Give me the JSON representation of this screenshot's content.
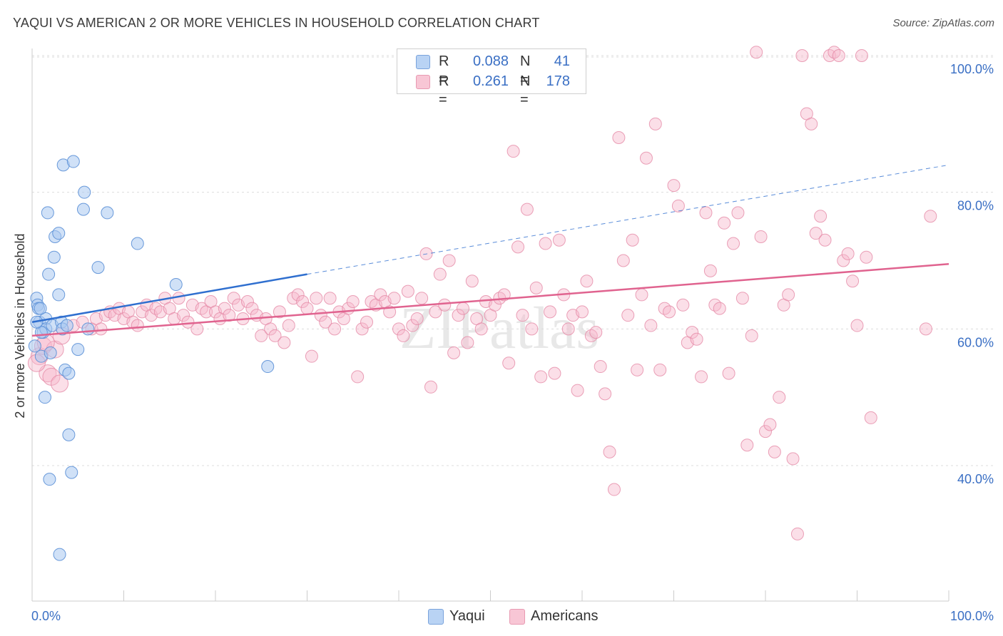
{
  "title": "YAQUI VS AMERICAN 2 OR MORE VEHICLES IN HOUSEHOLD CORRELATION CHART",
  "source": "Source: ZipAtlas.com",
  "watermark": "ZIPatlas",
  "colors": {
    "yaqui_fill": "#a9c8f0",
    "yaqui_stroke": "#5a8fd6",
    "yaqui_line": "#2f6fcf",
    "americans_fill": "#f6b8cb",
    "americans_stroke": "#e58aa6",
    "americans_line": "#e0638f",
    "axis_text": "#3a6fc4"
  },
  "legend": {
    "rows": [
      {
        "swatch": "yaqui",
        "r_label": "R =",
        "r_value": "0.088",
        "n_label": "N =",
        "n_value": "41"
      },
      {
        "swatch": "americans",
        "r_label": "R =",
        "r_value": "0.261",
        "n_label": "N =",
        "n_value": "178"
      }
    ],
    "series_labels": [
      "Yaqui",
      "Americans"
    ]
  },
  "chart_data": {
    "type": "scatter",
    "title": "YAQUI VS AMERICAN 2 OR MORE VEHICLES IN HOUSEHOLD CORRELATION CHART",
    "xlabel": "",
    "ylabel": "2 or more Vehicles in Household",
    "xlim": [
      0,
      100
    ],
    "ylim": [
      20,
      101
    ],
    "x_tick_labels": [
      "0.0%",
      "100.0%"
    ],
    "y_ticks": [
      40,
      60,
      80,
      100
    ],
    "y_tick_labels": [
      "40.0%",
      "60.0%",
      "80.0%",
      "100.0%"
    ],
    "grid": true,
    "legend_position": "top-center",
    "series": [
      {
        "name": "Yaqui",
        "trend": {
          "x": [
            0,
            30
          ],
          "y": [
            61.0,
            68.0
          ],
          "extended_to": [
            100,
            84.0
          ]
        },
        "points": [
          [
            0.3,
            57.5
          ],
          [
            0.5,
            64.5
          ],
          [
            0.6,
            63.5
          ],
          [
            0.7,
            63.0
          ],
          [
            0.8,
            61.0
          ],
          [
            1.0,
            56.0
          ],
          [
            1.2,
            59.5
          ],
          [
            1.4,
            50.0
          ],
          [
            1.5,
            61.5
          ],
          [
            1.5,
            60.0
          ],
          [
            1.7,
            77.0
          ],
          [
            1.8,
            68.0
          ],
          [
            1.9,
            38.0
          ],
          [
            2.0,
            56.5
          ],
          [
            2.2,
            60.5
          ],
          [
            2.4,
            70.5
          ],
          [
            2.5,
            73.5
          ],
          [
            2.9,
            74.0
          ],
          [
            2.9,
            65.0
          ],
          [
            3.0,
            27.0
          ],
          [
            3.2,
            61.0
          ],
          [
            3.3,
            60.0
          ],
          [
            3.4,
            84.0
          ],
          [
            3.6,
            54.0
          ],
          [
            3.8,
            60.5
          ],
          [
            4.0,
            53.5
          ],
          [
            4.0,
            44.5
          ],
          [
            4.3,
            39.0
          ],
          [
            4.5,
            84.5
          ],
          [
            5.0,
            57.0
          ],
          [
            5.6,
            77.5
          ],
          [
            5.7,
            80.0
          ],
          [
            6.1,
            60.0
          ],
          [
            7.2,
            69.0
          ],
          [
            8.2,
            77.0
          ],
          [
            11.5,
            72.5
          ],
          [
            15.7,
            66.5
          ],
          [
            25.7,
            54.5
          ],
          [
            0.9,
            63.0
          ],
          [
            1.0,
            59.5
          ],
          [
            0.5,
            61.0
          ]
        ]
      },
      {
        "name": "Americans",
        "trend": {
          "x": [
            0,
            100
          ],
          "y": [
            59.0,
            69.5
          ]
        },
        "points": [
          [
            0.8,
            56.0
          ],
          [
            1.2,
            57.5
          ],
          [
            1.7,
            53.5
          ],
          [
            2.1,
            53.0
          ],
          [
            2.5,
            57.0
          ],
          [
            3.0,
            52.0
          ],
          [
            3.2,
            59.0
          ],
          [
            4.5,
            60.5
          ],
          [
            5.5,
            61.0
          ],
          [
            6.5,
            60.0
          ],
          [
            7.0,
            61.5
          ],
          [
            7.5,
            60.0
          ],
          [
            8.0,
            62.0
          ],
          [
            8.5,
            62.5
          ],
          [
            9.0,
            62.0
          ],
          [
            9.5,
            63.0
          ],
          [
            10.0,
            61.5
          ],
          [
            10.5,
            62.5
          ],
          [
            11.0,
            61.0
          ],
          [
            11.5,
            60.5
          ],
          [
            12.0,
            62.5
          ],
          [
            12.5,
            63.5
          ],
          [
            13.0,
            62.0
          ],
          [
            13.5,
            63.0
          ],
          [
            14.0,
            62.5
          ],
          [
            14.5,
            64.5
          ],
          [
            15.0,
            63.0
          ],
          [
            15.5,
            61.5
          ],
          [
            16.0,
            64.5
          ],
          [
            16.5,
            62.0
          ],
          [
            17.0,
            61.0
          ],
          [
            17.5,
            63.5
          ],
          [
            18.0,
            60.0
          ],
          [
            18.5,
            63.0
          ],
          [
            19.0,
            62.5
          ],
          [
            19.5,
            64.0
          ],
          [
            20.0,
            62.5
          ],
          [
            20.5,
            61.5
          ],
          [
            21.0,
            63.0
          ],
          [
            21.5,
            62.0
          ],
          [
            22.0,
            64.5
          ],
          [
            22.5,
            63.5
          ],
          [
            23.0,
            61.5
          ],
          [
            23.5,
            64.0
          ],
          [
            24.0,
            63.0
          ],
          [
            24.5,
            62.0
          ],
          [
            25.0,
            59.0
          ],
          [
            25.5,
            61.5
          ],
          [
            26.0,
            60.0
          ],
          [
            26.5,
            59.0
          ],
          [
            27.0,
            62.5
          ],
          [
            27.5,
            58.0
          ],
          [
            28.0,
            60.5
          ],
          [
            28.5,
            64.5
          ],
          [
            29.0,
            65.0
          ],
          [
            29.5,
            64.0
          ],
          [
            30.0,
            63.0
          ],
          [
            30.5,
            56.0
          ],
          [
            31.0,
            64.5
          ],
          [
            31.5,
            62.0
          ],
          [
            32.0,
            61.0
          ],
          [
            32.5,
            64.5
          ],
          [
            33.0,
            60.0
          ],
          [
            33.5,
            62.5
          ],
          [
            34.0,
            61.5
          ],
          [
            34.5,
            63.0
          ],
          [
            35.0,
            64.0
          ],
          [
            35.5,
            53.0
          ],
          [
            36.0,
            60.0
          ],
          [
            36.5,
            61.0
          ],
          [
            37.0,
            64.0
          ],
          [
            37.5,
            63.5
          ],
          [
            38.0,
            65.0
          ],
          [
            38.5,
            64.0
          ],
          [
            39.0,
            62.5
          ],
          [
            39.5,
            64.5
          ],
          [
            40.0,
            60.0
          ],
          [
            40.5,
            59.0
          ],
          [
            41.0,
            65.5
          ],
          [
            41.5,
            60.5
          ],
          [
            42.0,
            61.5
          ],
          [
            42.5,
            64.5
          ],
          [
            43.0,
            71.0
          ],
          [
            43.5,
            51.5
          ],
          [
            44.0,
            62.5
          ],
          [
            44.5,
            68.0
          ],
          [
            45.0,
            63.5
          ],
          [
            45.5,
            70.0
          ],
          [
            46.0,
            56.5
          ],
          [
            46.5,
            62.0
          ],
          [
            47.0,
            63.0
          ],
          [
            47.5,
            58.0
          ],
          [
            48.0,
            67.0
          ],
          [
            48.5,
            61.5
          ],
          [
            49.0,
            60.0
          ],
          [
            49.5,
            64.0
          ],
          [
            50.0,
            62.0
          ],
          [
            50.5,
            63.5
          ],
          [
            51.0,
            64.5
          ],
          [
            51.5,
            65.0
          ],
          [
            52.0,
            55.0
          ],
          [
            52.5,
            86.0
          ],
          [
            53.0,
            72.0
          ],
          [
            53.5,
            62.0
          ],
          [
            54.0,
            77.5
          ],
          [
            54.5,
            60.0
          ],
          [
            55.0,
            66.0
          ],
          [
            55.5,
            53.0
          ],
          [
            56.0,
            72.5
          ],
          [
            56.5,
            62.5
          ],
          [
            57.0,
            53.5
          ],
          [
            57.5,
            73.0
          ],
          [
            58.0,
            65.0
          ],
          [
            58.5,
            60.0
          ],
          [
            59.0,
            62.0
          ],
          [
            59.5,
            51.0
          ],
          [
            60.0,
            62.5
          ],
          [
            60.5,
            67.0
          ],
          [
            61.0,
            59.0
          ],
          [
            61.5,
            59.5
          ],
          [
            62.0,
            54.5
          ],
          [
            62.5,
            50.5
          ],
          [
            63.0,
            42.0
          ],
          [
            63.5,
            36.5
          ],
          [
            64.0,
            88.0
          ],
          [
            64.5,
            70.0
          ],
          [
            65.0,
            62.0
          ],
          [
            65.5,
            73.0
          ],
          [
            66.0,
            54.0
          ],
          [
            66.5,
            65.0
          ],
          [
            67.0,
            85.0
          ],
          [
            67.5,
            60.5
          ],
          [
            68.0,
            90.0
          ],
          [
            68.5,
            54.0
          ],
          [
            69.0,
            63.0
          ],
          [
            69.5,
            62.5
          ],
          [
            70.0,
            81.0
          ],
          [
            70.5,
            78.0
          ],
          [
            71.0,
            63.5
          ],
          [
            71.5,
            58.0
          ],
          [
            72.0,
            59.5
          ],
          [
            72.5,
            58.5
          ],
          [
            73.0,
            53.0
          ],
          [
            73.5,
            77.0
          ],
          [
            74.0,
            68.5
          ],
          [
            74.5,
            63.5
          ],
          [
            75.0,
            63.0
          ],
          [
            75.5,
            75.5
          ],
          [
            76.0,
            53.5
          ],
          [
            76.5,
            72.5
          ],
          [
            77.0,
            77.0
          ],
          [
            77.5,
            64.5
          ],
          [
            78.0,
            43.0
          ],
          [
            78.5,
            59.0
          ],
          [
            79.0,
            100.5
          ],
          [
            79.5,
            73.5
          ],
          [
            80.0,
            45.0
          ],
          [
            80.5,
            46.0
          ],
          [
            81.0,
            42.0
          ],
          [
            81.5,
            50.0
          ],
          [
            82.0,
            63.5
          ],
          [
            82.5,
            65.0
          ],
          [
            83.0,
            41.0
          ],
          [
            83.5,
            30.0
          ],
          [
            84.0,
            100.0
          ],
          [
            84.5,
            91.5
          ],
          [
            85.0,
            90.0
          ],
          [
            85.5,
            74.0
          ],
          [
            86.0,
            76.5
          ],
          [
            86.5,
            73.0
          ],
          [
            87.0,
            100.0
          ],
          [
            87.5,
            100.5
          ],
          [
            88.0,
            100.0
          ],
          [
            88.5,
            70.0
          ],
          [
            89.0,
            71.0
          ],
          [
            89.5,
            67.0
          ],
          [
            90.0,
            60.5
          ],
          [
            90.5,
            100.0
          ],
          [
            91.0,
            70.5
          ],
          [
            91.5,
            47.0
          ],
          [
            98.0,
            76.5
          ],
          [
            97.5,
            60.0
          ],
          [
            0.5,
            55.0
          ],
          [
            1.5,
            58.0
          ]
        ]
      }
    ]
  }
}
